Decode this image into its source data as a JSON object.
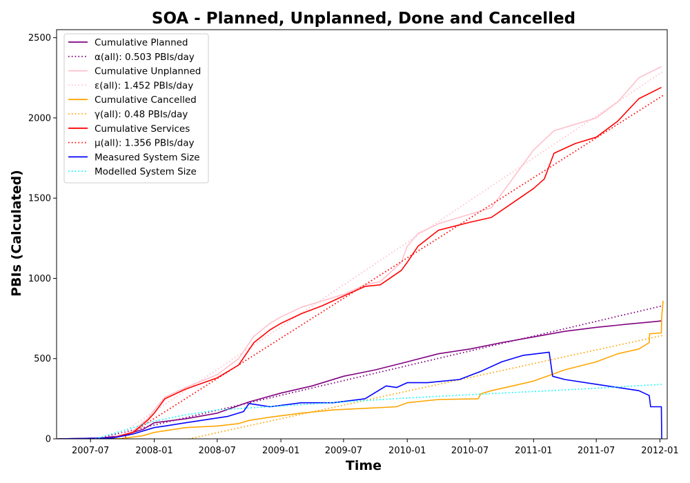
{
  "chart_data": {
    "type": "line",
    "title": "SOA - Planned, Unplanned, Done  and Cancelled",
    "xlabel": "Time",
    "ylabel": "PBIs (Calculated)",
    "xlim": [
      "2007-03-25",
      "2012-01-22"
    ],
    "ylim": [
      0,
      2550
    ],
    "x_ticks": [
      "2007-07",
      "2008-01",
      "2008-07",
      "2009-01",
      "2009-07",
      "2010-01",
      "2010-07",
      "2011-01",
      "2011-07",
      "2012-01"
    ],
    "y_ticks": [
      0,
      500,
      1000,
      1500,
      2000,
      2500
    ],
    "grid": false,
    "legend_position": "top-left",
    "series": [
      {
        "name": "Cumulative Planned",
        "style": "solid",
        "color": "#800080",
        "x": [
          "2007-03-28",
          "2007-08-01",
          "2007-10-01",
          "2007-12-01",
          "2008-01-01",
          "2008-04-01",
          "2008-07-01",
          "2008-10-01",
          "2009-01-01",
          "2009-04-01",
          "2009-07-01",
          "2009-10-01",
          "2010-01-01",
          "2010-04-01",
          "2010-07-01",
          "2010-10-01",
          "2011-01-01",
          "2011-04-01",
          "2011-07-01",
          "2011-10-01",
          "2011-12-15",
          "2012-01-05"
        ],
        "y": [
          0,
          5,
          20,
          60,
          100,
          125,
          160,
          230,
          285,
          330,
          390,
          430,
          480,
          530,
          560,
          600,
          635,
          670,
          695,
          715,
          730,
          735
        ]
      },
      {
        "name": "α(all): 0.503 PBIs/day",
        "style": "dotted",
        "color": "#800080",
        "x": [
          "2007-07-15",
          "2012-01-10"
        ],
        "y": [
          0,
          830
        ]
      },
      {
        "name": "Cumulative Unplanned",
        "style": "solid",
        "color": "#ffc0cb",
        "x": [
          "2007-03-28",
          "2007-09-01",
          "2007-11-01",
          "2007-12-15",
          "2008-01-01",
          "2008-02-01",
          "2008-04-01",
          "2008-07-01",
          "2008-09-01",
          "2008-10-15",
          "2008-12-01",
          "2009-01-01",
          "2009-03-01",
          "2009-05-01",
          "2009-07-01",
          "2009-09-01",
          "2009-10-15",
          "2009-12-15",
          "2010-01-01",
          "2010-02-01",
          "2010-04-01",
          "2010-07-01",
          "2010-09-01",
          "2010-11-01",
          "2011-01-01",
          "2011-03-01",
          "2011-05-01",
          "2011-07-01",
          "2011-09-01",
          "2011-11-01",
          "2012-01-05"
        ],
        "y": [
          0,
          5,
          50,
          130,
          180,
          260,
          320,
          400,
          500,
          640,
          720,
          760,
          820,
          860,
          900,
          960,
          980,
          1100,
          1200,
          1280,
          1340,
          1400,
          1440,
          1620,
          1800,
          1920,
          1960,
          2000,
          2100,
          2250,
          2320
        ]
      },
      {
        "name": "ε(all): 1.452 PBIs/day",
        "style": "dotted",
        "color": "#ffc0cb",
        "x": [
          "2007-09-05",
          "2012-01-10"
        ],
        "y": [
          0,
          2290
        ]
      },
      {
        "name": "Cumulative Cancelled",
        "style": "solid",
        "color": "#ffa500",
        "x": [
          "2007-03-28",
          "2007-10-01",
          "2007-12-01",
          "2008-01-01",
          "2008-04-01",
          "2008-07-01",
          "2008-09-01",
          "2008-10-01",
          "2008-12-01",
          "2009-03-01",
          "2009-06-01",
          "2009-09-01",
          "2009-12-01",
          "2010-01-01",
          "2010-04-01",
          "2010-07-25",
          "2010-08-01",
          "2010-09-01",
          "2010-11-01",
          "2011-01-01",
          "2011-04-01",
          "2011-07-01",
          "2011-09-01",
          "2011-11-01",
          "2011-12-01",
          "2011-12-02",
          "2012-01-05",
          "2012-01-06",
          "2012-01-10"
        ],
        "y": [
          0,
          2,
          20,
          40,
          70,
          80,
          95,
          115,
          135,
          160,
          180,
          190,
          200,
          225,
          245,
          250,
          280,
          300,
          330,
          360,
          430,
          480,
          530,
          560,
          600,
          655,
          660,
          760,
          860
        ]
      },
      {
        "name": "γ(all): 0.48 PBIs/day",
        "style": "dotted",
        "color": "#ffa500",
        "x": [
          "2008-04-10",
          "2012-01-10"
        ],
        "y": [
          0,
          645
        ]
      },
      {
        "name": "Cumulative Services",
        "style": "solid",
        "color": "#ff0000",
        "x": [
          "2007-03-28",
          "2007-09-01",
          "2007-11-01",
          "2007-12-15",
          "2008-01-01",
          "2008-02-01",
          "2008-04-01",
          "2008-07-01",
          "2008-09-01",
          "2008-10-15",
          "2008-12-01",
          "2009-01-01",
          "2009-03-01",
          "2009-05-01",
          "2009-07-01",
          "2009-09-01",
          "2009-10-15",
          "2009-12-15",
          "2010-01-01",
          "2010-02-01",
          "2010-04-01",
          "2010-07-01",
          "2010-09-01",
          "2010-11-01",
          "2011-01-01",
          "2011-02-01",
          "2011-03-01",
          "2011-05-01",
          "2011-07-01",
          "2011-09-01",
          "2011-11-01",
          "2012-01-05"
        ],
        "y": [
          0,
          5,
          40,
          120,
          160,
          250,
          310,
          380,
          460,
          600,
          680,
          720,
          780,
          830,
          890,
          950,
          960,
          1050,
          1100,
          1200,
          1300,
          1350,
          1380,
          1470,
          1560,
          1620,
          1780,
          1840,
          1880,
          1980,
          2120,
          2190
        ]
      },
      {
        "name": "μ(all): 1.356 PBIs/day",
        "style": "dotted",
        "color": "#ff0000",
        "x": [
          "2007-10-01",
          "2012-01-10"
        ],
        "y": [
          0,
          2140
        ]
      },
      {
        "name": "Measured System Size",
        "style": "solid",
        "color": "#0000ff",
        "x": [
          "2007-03-28",
          "2007-09-01",
          "2007-11-01",
          "2008-01-01",
          "2008-02-01",
          "2008-04-01",
          "2008-06-01",
          "2008-08-01",
          "2008-09-15",
          "2008-10-01",
          "2008-12-01",
          "2009-03-01",
          "2009-06-01",
          "2009-09-01",
          "2009-11-01",
          "2009-12-01",
          "2010-01-01",
          "2010-03-01",
          "2010-06-01",
          "2010-08-01",
          "2010-10-01",
          "2010-12-01",
          "2011-02-15",
          "2011-02-25",
          "2011-04-01",
          "2011-07-01",
          "2011-09-01",
          "2011-11-01",
          "2011-12-01",
          "2011-12-05",
          "2012-01-05",
          "2012-01-06"
        ],
        "y": [
          0,
          5,
          30,
          70,
          80,
          100,
          120,
          140,
          170,
          220,
          200,
          225,
          225,
          250,
          330,
          320,
          350,
          350,
          370,
          420,
          480,
          520,
          540,
          390,
          370,
          340,
          320,
          300,
          270,
          200,
          200,
          0
        ]
      },
      {
        "name": "Modelled System Size",
        "style": "dotted",
        "color": "#00ffff",
        "x": [
          "2007-07-15",
          "2007-10-01",
          "2008-01-01",
          "2008-04-01",
          "2008-07-01",
          "2009-01-01",
          "2009-07-01",
          "2010-01-01",
          "2010-07-01",
          "2011-01-01",
          "2011-07-01",
          "2012-01-10"
        ],
        "y": [
          0,
          50,
          110,
          150,
          180,
          205,
          230,
          255,
          275,
          295,
          315,
          340
        ]
      }
    ]
  }
}
